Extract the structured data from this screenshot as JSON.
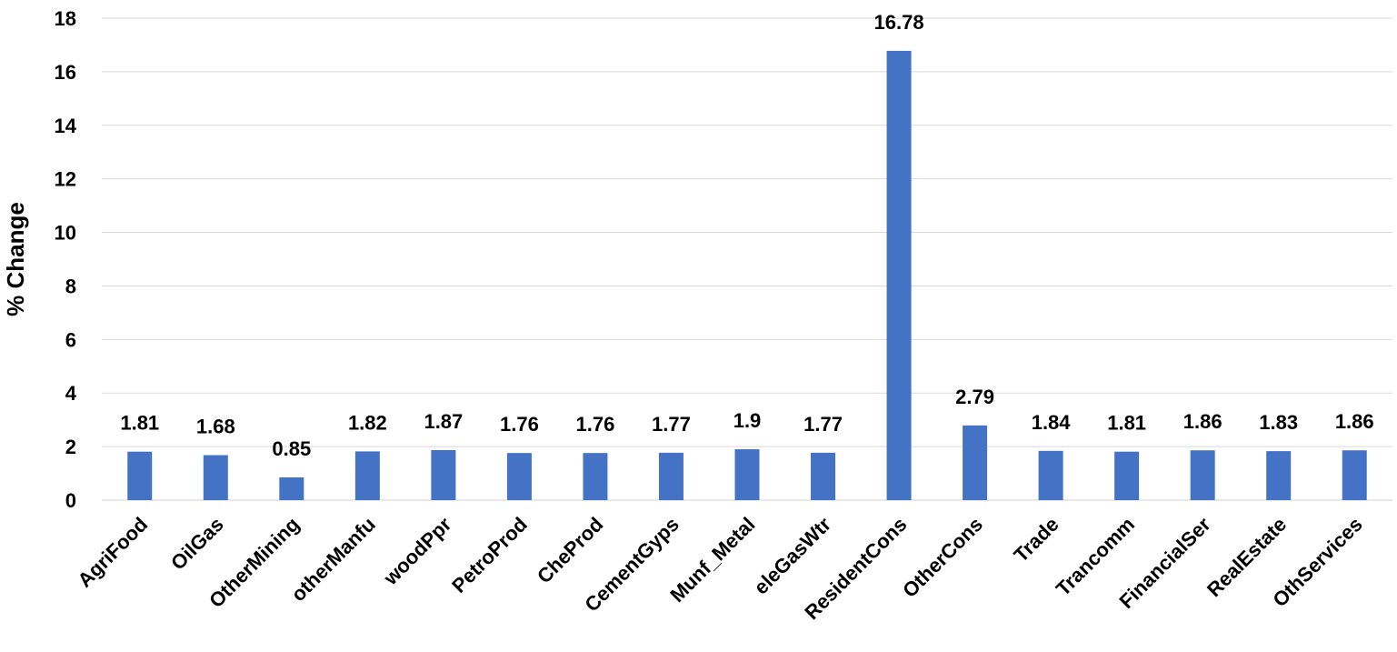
{
  "chart_data": {
    "type": "bar",
    "title": "",
    "xlabel": "",
    "ylabel": "% Change",
    "ylim": [
      0,
      18
    ],
    "yticks": [
      0,
      2,
      4,
      6,
      8,
      10,
      12,
      14,
      16,
      18
    ],
    "grid": true,
    "legend": "none",
    "bar_color": "#4472c4",
    "categories": [
      "AgriFood",
      "OilGas",
      "OtherMining",
      "otherManfu",
      "woodPpr",
      "PetroProd",
      "CheProd",
      "CementGyps",
      "Munf_Metal",
      "eleGasWtr",
      "ResidentCons",
      "OtherCons",
      "Trade",
      "Trancomm",
      "FinancialSer",
      "RealEstate",
      "OthServices"
    ],
    "values": [
      1.81,
      1.68,
      0.85,
      1.82,
      1.87,
      1.76,
      1.76,
      1.77,
      1.9,
      1.77,
      16.78,
      2.79,
      1.84,
      1.81,
      1.86,
      1.83,
      1.86
    ],
    "data_labels": [
      "1.81",
      "1.68",
      "0.85",
      "1.82",
      "1.87",
      "1.76",
      "1.76",
      "1.77",
      "1.9",
      "1.77",
      "16.78",
      "2.79",
      "1.84",
      "1.81",
      "1.86",
      "1.83",
      "1.86"
    ]
  }
}
